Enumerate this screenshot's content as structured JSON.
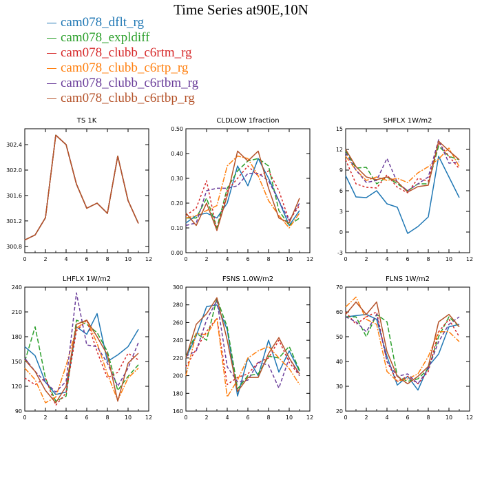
{
  "title": "Time Series at90E,10N",
  "legend": [
    {
      "label": "cam078_dflt_rg",
      "color": "#1f77b4",
      "dash": ""
    },
    {
      "label": "cam078_expldiff",
      "color": "#2ca02c",
      "dash": "7,3"
    },
    {
      "label": "cam078_clubb_c6rtm_rg",
      "color": "#d62728",
      "dash": "3,3"
    },
    {
      "label": "cam078_clubb_c6rtp_rg",
      "color": "#ff7f0e",
      "dash": "8,2,2,2"
    },
    {
      "label": "cam078_clubb_c6rtbm_rg",
      "color": "#6a3d9a",
      "dash": "5,3"
    },
    {
      "label": "cam078_clubb_c6rtbp_rg",
      "color": "#b5532a",
      "dash": ""
    }
  ],
  "chart_data": [
    {
      "type": "line",
      "title": "TS  1K",
      "xlim": [
        0,
        12
      ],
      "ylim": [
        300.7,
        302.65
      ],
      "xticks": [
        0,
        2,
        4,
        6,
        8,
        10,
        12
      ],
      "yticks": [
        300.8,
        301.2,
        301.6,
        302.0,
        302.4
      ],
      "ytick_labels": [
        "300.8",
        "301.2",
        "301.6",
        "302.0",
        "302.4"
      ],
      "x": [
        0,
        1,
        2,
        3,
        4,
        5,
        6,
        7,
        8,
        9,
        10,
        11
      ],
      "series": [
        {
          "values": [
            300.9,
            300.98,
            301.25,
            302.55,
            302.4,
            301.78,
            301.4,
            301.48,
            301.32,
            302.22,
            301.52,
            301.16
          ]
        },
        {
          "values": [
            300.9,
            300.98,
            301.25,
            302.55,
            302.4,
            301.78,
            301.4,
            301.48,
            301.32,
            302.22,
            301.52,
            301.16
          ]
        },
        {
          "values": [
            300.9,
            300.98,
            301.25,
            302.55,
            302.4,
            301.78,
            301.4,
            301.48,
            301.32,
            302.22,
            301.52,
            301.16
          ]
        },
        {
          "values": [
            300.9,
            300.98,
            301.25,
            302.55,
            302.4,
            301.78,
            301.4,
            301.48,
            301.32,
            302.22,
            301.52,
            301.16
          ]
        },
        {
          "values": [
            300.9,
            300.98,
            301.25,
            302.55,
            302.4,
            301.78,
            301.4,
            301.48,
            301.32,
            302.22,
            301.52,
            301.16
          ]
        },
        {
          "values": [
            300.9,
            300.98,
            301.25,
            302.55,
            302.4,
            301.78,
            301.4,
            301.48,
            301.32,
            302.22,
            301.52,
            301.16
          ]
        }
      ]
    },
    {
      "type": "line",
      "title": "CLDLOW   1fraction",
      "xlim": [
        0,
        12
      ],
      "ylim": [
        0.0,
        0.5
      ],
      "xticks": [
        0,
        2,
        4,
        6,
        8,
        10,
        12
      ],
      "yticks": [
        0.0,
        0.1,
        0.2,
        0.3,
        0.4,
        0.5
      ],
      "ytick_labels": [
        "0.00",
        "0.10",
        "0.20",
        "0.30",
        "0.40",
        "0.50"
      ],
      "x": [
        0,
        1,
        2,
        3,
        4,
        5,
        6,
        7,
        8,
        9,
        10,
        11
      ],
      "series": [
        {
          "values": [
            0.12,
            0.15,
            0.16,
            0.14,
            0.2,
            0.35,
            0.27,
            0.38,
            0.3,
            0.21,
            0.11,
            0.17
          ]
        },
        {
          "values": [
            0.14,
            0.14,
            0.22,
            0.1,
            0.26,
            0.33,
            0.37,
            0.38,
            0.35,
            0.17,
            0.11,
            0.14
          ]
        },
        {
          "values": [
            0.15,
            0.18,
            0.29,
            0.09,
            0.25,
            0.3,
            0.35,
            0.31,
            0.33,
            0.25,
            0.13,
            0.19
          ]
        },
        {
          "values": [
            0.14,
            0.15,
            0.17,
            0.19,
            0.35,
            0.39,
            0.38,
            0.31,
            0.21,
            0.15,
            0.1,
            0.16
          ]
        },
        {
          "values": [
            0.11,
            0.12,
            0.25,
            0.26,
            0.26,
            0.27,
            0.32,
            0.32,
            0.29,
            0.21,
            0.13,
            0.2
          ]
        },
        {
          "values": [
            0.16,
            0.11,
            0.2,
            0.09,
            0.23,
            0.41,
            0.37,
            0.41,
            0.26,
            0.14,
            0.12,
            0.22
          ]
        }
      ]
    },
    {
      "type": "line",
      "title": "SHFLX   1W/m2",
      "xlim": [
        0,
        12
      ],
      "ylim": [
        -3,
        15
      ],
      "xticks": [
        0,
        2,
        4,
        6,
        8,
        10,
        12
      ],
      "yticks": [
        -3,
        0,
        3,
        6,
        9,
        12,
        15
      ],
      "ytick_labels": [
        "-3",
        "0",
        "3",
        "6",
        "9",
        "12",
        "15"
      ],
      "x": [
        0,
        1,
        2,
        3,
        4,
        5,
        6,
        7,
        8,
        9,
        10,
        11
      ],
      "series": [
        {
          "values": [
            8.2,
            5.1,
            5.0,
            6.0,
            4.1,
            3.6,
            -0.2,
            0.8,
            2.2,
            11.0,
            8.0,
            5.0
          ]
        },
        {
          "values": [
            11.8,
            9.3,
            9.4,
            7.0,
            8.0,
            7.0,
            6.0,
            7.0,
            7.0,
            12.5,
            11.0,
            10.5
          ]
        },
        {
          "values": [
            10.5,
            7.0,
            6.5,
            6.4,
            8.3,
            6.5,
            5.7,
            7.8,
            7.4,
            13.0,
            11.0,
            9.2
          ]
        },
        {
          "values": [
            11.0,
            9.0,
            7.5,
            8.0,
            7.5,
            7.8,
            7.2,
            8.6,
            9.5,
            10.6,
            12.2,
            9.5
          ]
        },
        {
          "values": [
            11.5,
            9.0,
            7.2,
            7.5,
            10.7,
            7.2,
            6.0,
            7.0,
            8.0,
            13.4,
            10.0,
            10.2
          ]
        },
        {
          "values": [
            12.0,
            9.5,
            8.0,
            7.6,
            8.0,
            7.3,
            5.8,
            6.6,
            6.8,
            13.2,
            11.8,
            10.5
          ]
        }
      ]
    },
    {
      "type": "line",
      "title": "LHFLX   1W/m2",
      "xlim": [
        0,
        12
      ],
      "ylim": [
        90,
        240
      ],
      "xticks": [
        0,
        2,
        4,
        6,
        8,
        10,
        12
      ],
      "yticks": [
        90,
        120,
        150,
        180,
        210,
        240
      ],
      "ytick_labels": [
        "90",
        "120",
        "150",
        "180",
        "210",
        "240"
      ],
      "x": [
        0,
        1,
        2,
        3,
        4,
        5,
        6,
        7,
        8,
        9,
        10,
        11
      ],
      "series": [
        {
          "values": [
            168,
            157,
            125,
            110,
            113,
            192,
            183,
            208,
            150,
            158,
            168,
            189
          ]
        },
        {
          "values": [
            150,
            192,
            130,
            102,
            108,
            200,
            195,
            185,
            162,
            115,
            132,
            146
          ]
        },
        {
          "values": [
            130,
            122,
            130,
            97,
            112,
            187,
            200,
            162,
            130,
            137,
            160,
            152
          ]
        },
        {
          "values": [
            142,
            128,
            100,
            107,
            145,
            190,
            200,
            172,
            135,
            103,
            130,
            142
          ]
        },
        {
          "values": [
            154,
            138,
            125,
            113,
            126,
            233,
            170,
            168,
            148,
            120,
            142,
            173
          ]
        },
        {
          "values": [
            152,
            138,
            115,
            100,
            120,
            195,
            200,
            180,
            158,
            102,
            148,
            160
          ]
        }
      ]
    },
    {
      "type": "line",
      "title": "FSNS   1.0W/m2",
      "xlim": [
        0,
        12
      ],
      "ylim": [
        160,
        300
      ],
      "xticks": [
        0,
        2,
        4,
        6,
        8,
        10,
        12
      ],
      "yticks": [
        160,
        180,
        200,
        220,
        240,
        260,
        280,
        300
      ],
      "ytick_labels": [
        "160",
        "180",
        "200",
        "220",
        "240",
        "260",
        "280",
        "300"
      ],
      "x": [
        0,
        1,
        2,
        3,
        4,
        5,
        6,
        7,
        8,
        9,
        10,
        11
      ],
      "series": [
        {
          "values": [
            220,
            245,
            278,
            280,
            252,
            177,
            220,
            200,
            240,
            204,
            228,
            205
          ]
        },
        {
          "values": [
            222,
            248,
            240,
            287,
            255,
            185,
            200,
            202,
            222,
            220,
            233,
            206
          ]
        },
        {
          "values": [
            210,
            230,
            250,
            265,
            190,
            198,
            202,
            215,
            220,
            240,
            215,
            200
          ]
        },
        {
          "values": [
            200,
            248,
            246,
            265,
            176,
            195,
            220,
            228,
            233,
            220,
            208,
            190
          ]
        },
        {
          "values": [
            222,
            228,
            263,
            285,
            210,
            193,
            195,
            215,
            212,
            186,
            220,
            200
          ]
        },
        {
          "values": [
            220,
            258,
            270,
            288,
            240,
            182,
            198,
            198,
            225,
            243,
            220,
            202
          ]
        }
      ]
    },
    {
      "type": "line",
      "title": "FLNS   1W/m2",
      "xlim": [
        0,
        12
      ],
      "ylim": [
        20,
        70
      ],
      "xticks": [
        0,
        2,
        4,
        6,
        8,
        10,
        12
      ],
      "yticks": [
        20,
        30,
        40,
        50,
        60,
        70
      ],
      "ytick_labels": [
        "20",
        "30",
        "40",
        "50",
        "60",
        "70"
      ],
      "x": [
        0,
        1,
        2,
        3,
        4,
        5,
        6,
        7,
        8,
        9,
        10,
        11
      ],
      "series": [
        {
          "values": [
            58,
            58.5,
            59,
            57,
            42,
            30.5,
            34,
            28.5,
            38,
            43,
            54,
            55
          ]
        },
        {
          "values": [
            58,
            58,
            50,
            59,
            56,
            34,
            32,
            33,
            37,
            50,
            58,
            54
          ]
        },
        {
          "values": [
            60,
            55,
            58,
            60,
            40,
            32,
            34,
            31,
            36,
            52,
            57,
            50
          ]
        },
        {
          "values": [
            62,
            66,
            57,
            55,
            36,
            32,
            33,
            35,
            42,
            52,
            52,
            48
          ]
        },
        {
          "values": [
            58,
            56,
            52,
            59,
            40,
            34,
            35,
            31,
            37,
            48,
            55,
            58
          ]
        },
        {
          "values": [
            59,
            64,
            59,
            64,
            44,
            34,
            31,
            34,
            38,
            56,
            59,
            54
          ]
        }
      ]
    }
  ]
}
